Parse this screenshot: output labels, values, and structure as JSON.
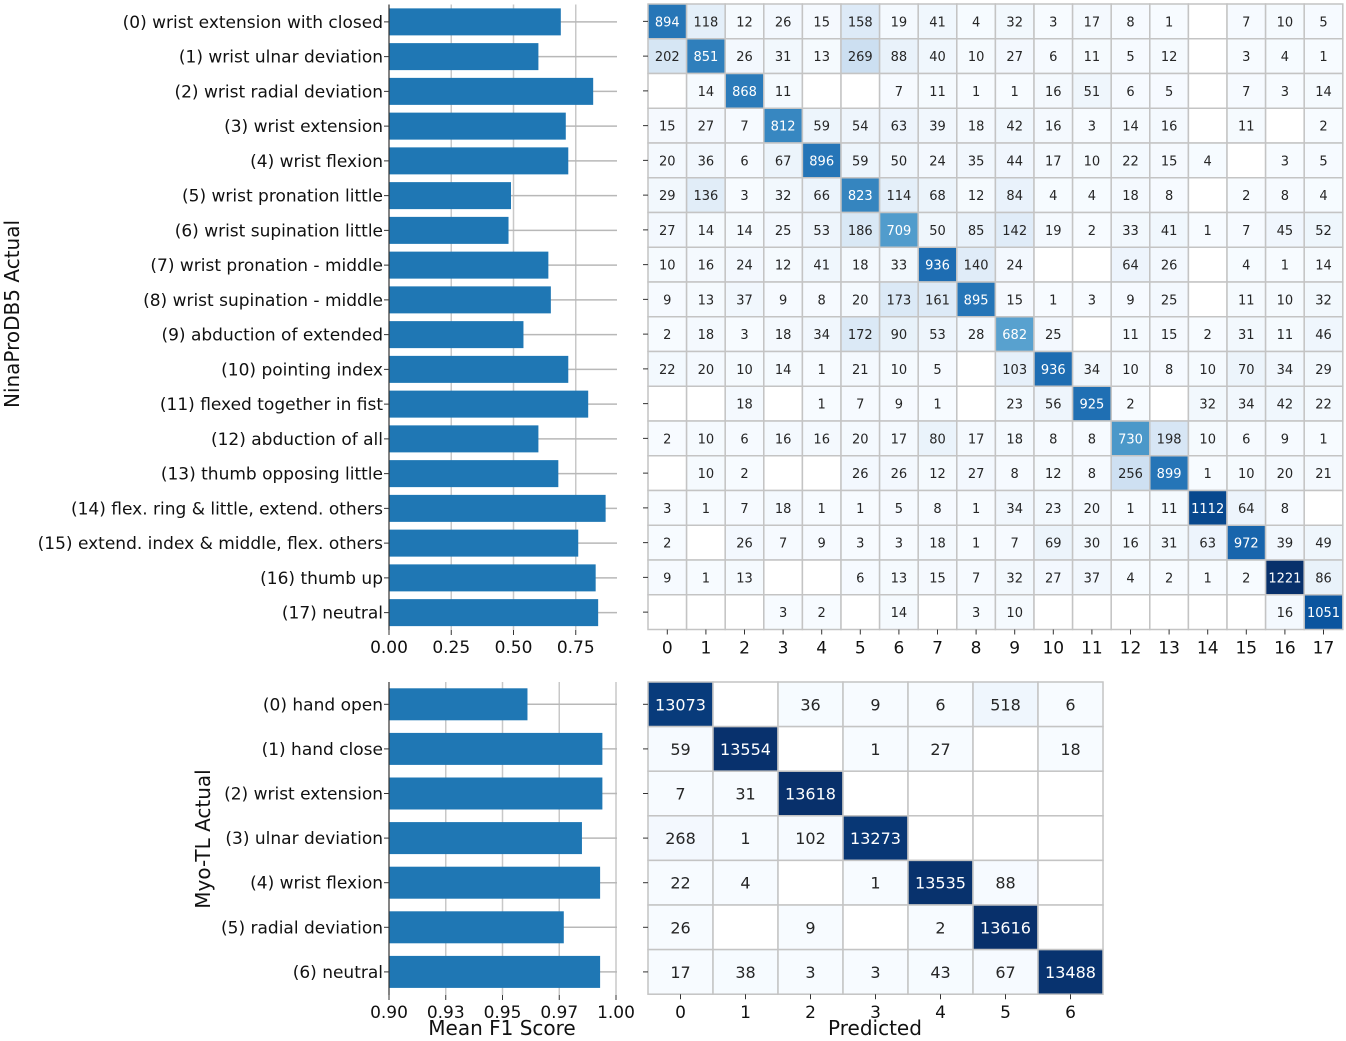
{
  "chart_data": [
    {
      "id": "ninapro-f1",
      "type": "bar",
      "orientation": "horizontal",
      "ylabel": "NinaProDB5 Actual",
      "xlabel": "",
      "xlim": [
        0.0,
        0.85
      ],
      "xticks": [
        "0.00",
        "0.25",
        "0.50",
        "0.75"
      ],
      "xtick_values": [
        0.0,
        0.25,
        0.5,
        0.75
      ],
      "grid": true,
      "categories": [
        "(0) wrist extension with closed",
        "(1) wrist ulnar deviation",
        "(2) wrist radial deviation",
        "(3) wrist extension",
        "(4) wrist flexion",
        "(5) wrist pronation little",
        "(6) wrist supination little",
        "(7) wrist pronation - middle",
        "(8) wrist supination - middle",
        "(9) abduction of extended",
        "(10) pointing index",
        "(11) flexed together in fist",
        "(12) abduction of all",
        "(13) thumb opposing little",
        "(14) flex. ring & little, extend. others",
        "(15) extend. index & middle, flex. others",
        "(16) thumb up",
        "(17) neutral"
      ],
      "values": [
        0.69,
        0.6,
        0.82,
        0.71,
        0.72,
        0.49,
        0.48,
        0.64,
        0.65,
        0.54,
        0.72,
        0.8,
        0.6,
        0.68,
        0.87,
        0.76,
        0.83,
        0.84
      ],
      "color": "#1f77b4"
    },
    {
      "id": "ninapro-confusion",
      "type": "heatmap",
      "xlabel": "",
      "xticks": [
        "0",
        "1",
        "2",
        "3",
        "4",
        "5",
        "6",
        "7",
        "8",
        "9",
        "10",
        "11",
        "12",
        "13",
        "14",
        "15",
        "16",
        "17"
      ],
      "colormap": "Blues",
      "vmax": 1221,
      "matrix": [
        [
          894,
          118,
          12,
          26,
          15,
          158,
          19,
          41,
          4,
          32,
          3,
          17,
          8,
          1,
          null,
          7,
          10,
          5
        ],
        [
          202,
          851,
          26,
          31,
          13,
          269,
          88,
          40,
          10,
          27,
          6,
          11,
          5,
          12,
          null,
          3,
          4,
          1
        ],
        [
          null,
          14,
          868,
          11,
          null,
          null,
          7,
          11,
          1,
          1,
          16,
          51,
          6,
          5,
          null,
          7,
          3,
          14
        ],
        [
          15,
          27,
          7,
          812,
          59,
          54,
          63,
          39,
          18,
          42,
          16,
          3,
          14,
          16,
          null,
          11,
          null,
          2
        ],
        [
          20,
          36,
          6,
          67,
          896,
          59,
          50,
          24,
          35,
          44,
          17,
          10,
          22,
          15,
          4,
          null,
          3,
          5
        ],
        [
          29,
          136,
          3,
          32,
          66,
          823,
          114,
          68,
          12,
          84,
          4,
          4,
          18,
          8,
          null,
          2,
          8,
          4
        ],
        [
          27,
          14,
          14,
          25,
          53,
          186,
          709,
          50,
          85,
          142,
          19,
          2,
          33,
          41,
          1,
          7,
          45,
          52
        ],
        [
          10,
          16,
          24,
          12,
          41,
          18,
          33,
          936,
          140,
          24,
          null,
          null,
          64,
          26,
          null,
          4,
          1,
          14
        ],
        [
          9,
          13,
          37,
          9,
          8,
          20,
          173,
          161,
          895,
          15,
          1,
          3,
          9,
          25,
          null,
          11,
          10,
          32
        ],
        [
          2,
          18,
          3,
          18,
          34,
          172,
          90,
          53,
          28,
          682,
          25,
          null,
          11,
          15,
          2,
          31,
          11,
          46
        ],
        [
          22,
          20,
          10,
          14,
          1,
          21,
          10,
          5,
          null,
          103,
          936,
          34,
          10,
          8,
          10,
          70,
          34,
          29
        ],
        [
          null,
          null,
          18,
          null,
          1,
          7,
          9,
          1,
          null,
          23,
          56,
          925,
          2,
          null,
          32,
          34,
          42,
          22
        ],
        [
          2,
          10,
          6,
          16,
          16,
          20,
          17,
          80,
          17,
          18,
          8,
          8,
          730,
          198,
          10,
          6,
          9,
          1
        ],
        [
          null,
          10,
          2,
          null,
          null,
          26,
          26,
          12,
          27,
          8,
          12,
          8,
          256,
          899,
          1,
          10,
          20,
          21
        ],
        [
          3,
          1,
          7,
          18,
          1,
          1,
          5,
          8,
          1,
          34,
          23,
          20,
          1,
          11,
          1112,
          64,
          8,
          null
        ],
        [
          2,
          null,
          26,
          7,
          9,
          3,
          3,
          18,
          1,
          7,
          69,
          30,
          16,
          31,
          63,
          972,
          39,
          49
        ],
        [
          9,
          1,
          13,
          null,
          null,
          6,
          13,
          15,
          7,
          32,
          27,
          37,
          4,
          2,
          1,
          2,
          1221,
          86
        ],
        [
          null,
          null,
          null,
          3,
          2,
          null,
          14,
          null,
          3,
          10,
          null,
          null,
          null,
          null,
          null,
          null,
          16,
          1051
        ]
      ]
    },
    {
      "id": "myo-f1",
      "type": "bar",
      "orientation": "horizontal",
      "ylabel": "Myo-TL Actual",
      "xlabel": "Mean F1 Score",
      "xlim": [
        0.9,
        1.0
      ],
      "xticks": [
        "0.90",
        "0.93",
        "0.95",
        "0.97",
        "1.00"
      ],
      "xtick_values": [
        0.9,
        0.925,
        0.95,
        0.975,
        1.0
      ],
      "grid": true,
      "categories": [
        "(0) hand open",
        "(1) hand close",
        "(2) wrist extension",
        "(3) ulnar deviation",
        "(4) wrist flexion",
        "(5) radial deviation",
        "(6) neutral"
      ],
      "values": [
        0.961,
        0.994,
        0.994,
        0.985,
        0.993,
        0.977,
        0.993
      ],
      "color": "#1f77b4"
    },
    {
      "id": "myo-confusion",
      "type": "heatmap",
      "xlabel": "Predicted",
      "xticks": [
        "0",
        "1",
        "2",
        "3",
        "4",
        "5",
        "6"
      ],
      "colormap": "Blues",
      "vmax": 13618,
      "matrix": [
        [
          13073,
          null,
          36,
          9,
          6,
          518,
          6
        ],
        [
          59,
          13554,
          null,
          1,
          27,
          null,
          18
        ],
        [
          7,
          31,
          13618,
          null,
          null,
          null,
          null
        ],
        [
          268,
          1,
          102,
          13273,
          null,
          null,
          null
        ],
        [
          22,
          4,
          null,
          1,
          13535,
          88,
          null
        ],
        [
          26,
          null,
          9,
          null,
          2,
          13616,
          null
        ],
        [
          17,
          38,
          3,
          3,
          43,
          67,
          13488
        ]
      ]
    }
  ]
}
